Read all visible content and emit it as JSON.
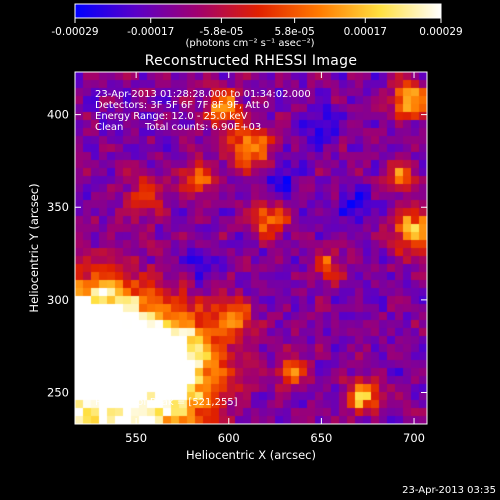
{
  "chart_data": {
    "type": "heatmap",
    "title": "Reconstructed RHESSI Image",
    "xlabel": "Heliocentric X (arcsec)",
    "ylabel": "Heliocentric Y (arcsec)",
    "xlim": [
      517,
      707
    ],
    "ylim": [
      233,
      423
    ],
    "xticks": [
      "550",
      "600",
      "650",
      "700"
    ],
    "xtick_values": [
      550,
      600,
      650,
      700
    ],
    "yticks": [
      "250",
      "300",
      "350",
      "400"
    ],
    "ytick_values": [
      250,
      300,
      350,
      400
    ],
    "colorbar": {
      "ticks": [
        "-0.00029",
        "-0.00017",
        "-5.8e-05",
        "5.8e-05",
        "0.00017",
        "0.00029"
      ],
      "tick_values": [
        -0.00029,
        -0.00017,
        -5.8e-05,
        5.8e-05,
        0.00017,
        0.00029
      ],
      "range": [
        -0.00029,
        0.00029
      ],
      "units": "(photons cm⁻² s⁻¹ asec⁻²)",
      "colormap": [
        "#0000ff",
        "#5a00c8",
        "#a00070",
        "#e02000",
        "#ff7a00",
        "#ffe040",
        "#ffffff"
      ]
    },
    "annotations": {
      "time_range": "23-Apr-2013 01:28:28.000 to 01:34:02.000",
      "detectors": "Detectors: 3F 5F 6F 7F 8F 9F, Att 0",
      "energy": "Energy Range: 12.0 - 25.0 keV",
      "clean": "Clean",
      "counts": "Total counts: 6.90E+03",
      "peak": "Position of Peak = [521,255]"
    },
    "peak": {
      "x": 521,
      "y": 255
    }
  },
  "footer": {
    "timestamp": "23-Apr-2013 03:35"
  }
}
